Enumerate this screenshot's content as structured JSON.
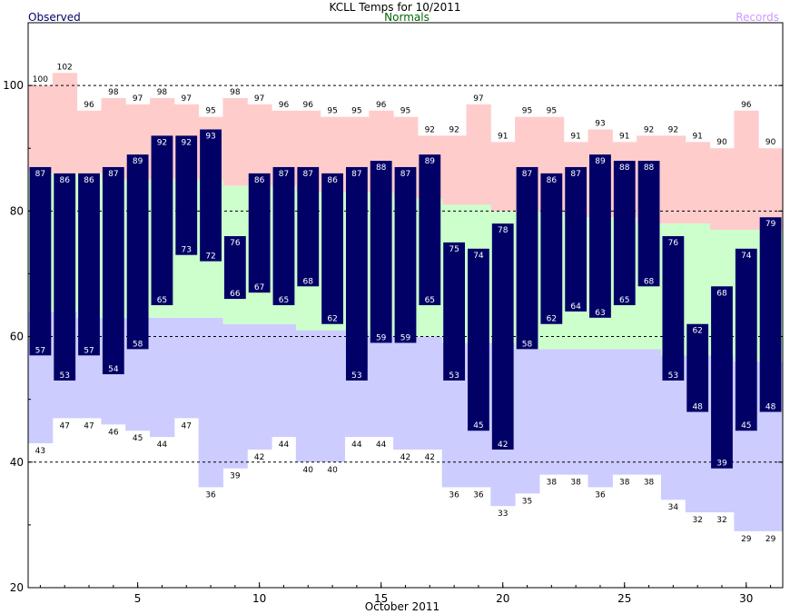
{
  "chart_data": {
    "type": "bar",
    "title": "KCLL Temps for 10/2011",
    "xlabel": "October 2011",
    "ylabel": "",
    "legend": [
      "Observed",
      "Normals",
      "Records"
    ],
    "legend_placement": "top",
    "ylim": [
      20,
      110
    ],
    "xlim": [
      0.5,
      31.5
    ],
    "yticks": [
      20,
      40,
      60,
      80,
      100
    ],
    "xticks": [
      5,
      10,
      15,
      20,
      25,
      30
    ],
    "dashed_gridlines": [
      40,
      60,
      80,
      100
    ],
    "colors": {
      "observed": "#000066",
      "observed_label": "#000066",
      "normals": "#ccffcc",
      "normals_label": "#006600",
      "record_high_fill": "#ffcccc",
      "record_low_fill": "#ccccff",
      "records_label": "#cc99ff",
      "bar_value_text": "#ffffff",
      "record_value_text": "#000000",
      "grid": "#000000"
    },
    "days": [
      1,
      2,
      3,
      4,
      5,
      6,
      7,
      8,
      9,
      10,
      11,
      12,
      13,
      14,
      15,
      16,
      17,
      18,
      19,
      20,
      21,
      22,
      23,
      24,
      25,
      26,
      27,
      28,
      29,
      30,
      31
    ],
    "observed_high": [
      87,
      86,
      86,
      87,
      89,
      92,
      92,
      93,
      76,
      86,
      87,
      87,
      86,
      87,
      88,
      87,
      89,
      75,
      74,
      78,
      87,
      86,
      87,
      89,
      88,
      88,
      76,
      62,
      68,
      74,
      79
    ],
    "observed_low": [
      57,
      53,
      57,
      54,
      58,
      65,
      73,
      72,
      66,
      67,
      65,
      68,
      62,
      53,
      59,
      59,
      65,
      53,
      45,
      42,
      58,
      62,
      64,
      63,
      65,
      68,
      53,
      48,
      39,
      45,
      48
    ],
    "normal_high": [
      86,
      86,
      86,
      85,
      85,
      85,
      85,
      85,
      84,
      84,
      84,
      83,
      83,
      83,
      83,
      82,
      82,
      81,
      81,
      80,
      80,
      80,
      79,
      79,
      79,
      78,
      78,
      78,
      77,
      77,
      77
    ],
    "normal_low": [
      64,
      64,
      63,
      63,
      63,
      63,
      63,
      63,
      62,
      62,
      62,
      61,
      61,
      61,
      60,
      60,
      60,
      59,
      59,
      59,
      58,
      58,
      58,
      58,
      58,
      58,
      57,
      57,
      57,
      56,
      56
    ],
    "record_high": [
      100,
      102,
      96,
      98,
      97,
      98,
      97,
      95,
      98,
      97,
      96,
      96,
      95,
      95,
      96,
      95,
      92,
      92,
      97,
      91,
      95,
      95,
      91,
      93,
      91,
      92,
      92,
      91,
      90,
      96,
      90
    ],
    "record_low": [
      43,
      47,
      47,
      46,
      45,
      44,
      47,
      36,
      39,
      42,
      44,
      40,
      40,
      44,
      44,
      42,
      42,
      36,
      36,
      33,
      35,
      38,
      38,
      36,
      38,
      38,
      34,
      32,
      32,
      29,
      29
    ]
  }
}
